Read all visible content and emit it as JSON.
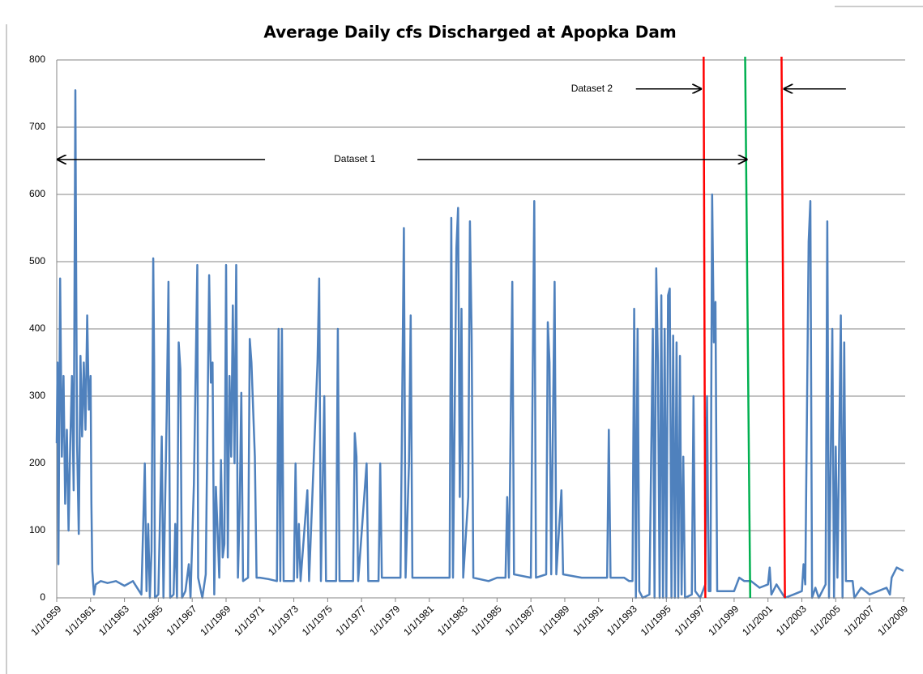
{
  "chart_data": {
    "type": "line",
    "title": "Average Daily cfs Discharged at Apopka Dam",
    "series": [
      {
        "color": "#4f81bd",
        "x": [
          1959,
          1959.05,
          1959.1,
          1959.2,
          1959.3,
          1959.4,
          1959.5,
          1959.6,
          1959.7,
          1959.8,
          1959.9,
          1960,
          1960.1,
          1960.15,
          1960.2,
          1960.3,
          1960.4,
          1960.5,
          1960.6,
          1960.7,
          1960.8,
          1960.9,
          1961,
          1961.05,
          1961.1,
          1961.2,
          1961.3,
          1961.6,
          1962,
          1962.5,
          1963,
          1963.5,
          1964,
          1964.2,
          1964.3,
          1964.4,
          1964.5,
          1964.6,
          1964.7,
          1964.75,
          1964.8,
          1965,
          1965.2,
          1965.3,
          1965.5,
          1965.6,
          1965.7,
          1965.9,
          1966,
          1966.1,
          1966.2,
          1966.3,
          1966.4,
          1966.6,
          1966.8,
          1966.9,
          1967.1,
          1967.3,
          1967.35,
          1967.6,
          1967.8,
          1968,
          1968.1,
          1968.2,
          1968.3,
          1968.4,
          1968.5,
          1968.6,
          1968.7,
          1968.8,
          1968.9,
          1969,
          1969.1,
          1969.2,
          1969.3,
          1969.4,
          1969.5,
          1969.6,
          1969.7,
          1969.8,
          1969.9,
          1970,
          1970.3,
          1970.4,
          1970.5,
          1970.6,
          1970.7,
          1970.8,
          1971,
          1971.5,
          1972,
          1972.1,
          1972.2,
          1972.3,
          1972.4,
          1973,
          1973.1,
          1973.2,
          1973.3,
          1973.4,
          1973.8,
          1973.9,
          1974.4,
          1974.5,
          1974.6,
          1974.8,
          1974.9,
          1975.5,
          1975.6,
          1975.7,
          1976.5,
          1976.6,
          1976.7,
          1976.8,
          1977.3,
          1977.4,
          1978,
          1978.1,
          1978.2,
          1979.3,
          1979.5,
          1979.6,
          1979.8,
          1979.9,
          1980,
          1982.2,
          1982.3,
          1982.4,
          1982.6,
          1982.7,
          1982.8,
          1982.9,
          1983,
          1983.3,
          1983.4,
          1983.5,
          1983.6,
          1984.5,
          1985,
          1985.5,
          1985.6,
          1985.7,
          1985.9,
          1986,
          1987,
          1987.2,
          1987.3,
          1987.9,
          1988,
          1988.1,
          1988.2,
          1988.4,
          1988.5,
          1988.8,
          1988.9,
          1990,
          1991,
          1991.5,
          1991.6,
          1991.7,
          1992.5,
          1992.8,
          1993,
          1993.1,
          1993.2,
          1993.3,
          1993.4,
          1993.6,
          1994,
          1994.2,
          1994.3,
          1994.4,
          1994.5,
          1994.6,
          1994.7,
          1994.8,
          1994.9,
          1995,
          1995.1,
          1995.2,
          1995.3,
          1995.4,
          1995.5,
          1995.6,
          1995.7,
          1995.8,
          1995.9,
          1996,
          1996.1,
          1996.5,
          1996.6,
          1996.7,
          1997,
          1997.3,
          1997.4,
          1997.5,
          1997.6,
          1997.7,
          1997.8,
          1997.9,
          1998,
          1998.5,
          1999,
          1999.3,
          1999.6,
          2000,
          2000.5,
          2001,
          2001.1,
          2001.2,
          2001.5,
          2002,
          2002.5,
          2003,
          2003.1,
          2003.2,
          2003.4,
          2003.5,
          2003.6,
          2003.8,
          2004,
          2004.4,
          2004.5,
          2004.6,
          2004.8,
          2004.9,
          2005,
          2005.1,
          2005.3,
          2005.4,
          2005.5,
          2005.6,
          2006,
          2006.1,
          2006.5,
          2007,
          2007.5,
          2008,
          2008.2,
          2008.3,
          2008.6,
          2009
        ],
        "values": [
          230,
          350,
          50,
          475,
          210,
          330,
          140,
          250,
          100,
          230,
          330,
          160,
          755,
          480,
          230,
          95,
          360,
          240,
          350,
          250,
          420,
          280,
          330,
          140,
          40,
          5,
          20,
          25,
          22,
          25,
          18,
          25,
          5,
          200,
          10,
          110,
          0,
          70,
          505,
          350,
          0,
          5,
          240,
          0,
          280,
          470,
          0,
          5,
          110,
          0,
          380,
          340,
          0,
          10,
          50,
          0,
          170,
          495,
          30,
          0,
          35,
          480,
          320,
          350,
          5,
          165,
          100,
          30,
          205,
          60,
          80,
          495,
          60,
          330,
          210,
          435,
          200,
          495,
          30,
          130,
          305,
          25,
          30,
          385,
          350,
          280,
          210,
          30,
          30,
          28,
          25,
          400,
          25,
          400,
          25,
          25,
          200,
          30,
          110,
          25,
          160,
          25,
          350,
          475,
          25,
          300,
          25,
          25,
          400,
          25,
          25,
          245,
          210,
          25,
          200,
          25,
          25,
          200,
          30,
          30,
          550,
          30,
          200,
          420,
          30,
          30,
          565,
          30,
          520,
          580,
          150,
          430,
          30,
          150,
          560,
          390,
          30,
          25,
          30,
          30,
          150,
          30,
          470,
          35,
          30,
          590,
          30,
          35,
          410,
          350,
          35,
          470,
          35,
          160,
          35,
          30,
          30,
          30,
          250,
          30,
          30,
          25,
          25,
          430,
          0,
          400,
          10,
          0,
          5,
          400,
          0,
          490,
          350,
          0,
          450,
          0,
          400,
          0,
          450,
          460,
          0,
          390,
          0,
          380,
          0,
          360,
          5,
          210,
          0,
          5,
          300,
          10,
          0,
          20,
          300,
          10,
          10,
          600,
          380,
          440,
          10,
          10,
          10,
          30,
          25,
          25,
          15,
          20,
          45,
          5,
          20,
          0,
          5,
          10,
          50,
          20,
          530,
          590,
          0,
          15,
          0,
          20,
          560,
          0,
          400,
          0,
          225,
          30,
          420,
          0,
          380,
          25,
          25,
          0,
          15,
          5,
          10,
          15,
          5,
          30,
          45,
          40
        ]
      }
    ],
    "xlim": [
      1959,
      2009.1
    ],
    "xticks": [
      {
        "value": 1959,
        "label": "1/1/1959"
      },
      {
        "value": 1961,
        "label": "1/1/1961"
      },
      {
        "value": 1963,
        "label": "1/1/1963"
      },
      {
        "value": 1965,
        "label": "1/1/1965"
      },
      {
        "value": 1967,
        "label": "1/1/1967"
      },
      {
        "value": 1969,
        "label": "1/1/1969"
      },
      {
        "value": 1971,
        "label": "1/1/1971"
      },
      {
        "value": 1973,
        "label": "1/1/1973"
      },
      {
        "value": 1975,
        "label": "1/1/1975"
      },
      {
        "value": 1977,
        "label": "1/1/1977"
      },
      {
        "value": 1979,
        "label": "1/1/1979"
      },
      {
        "value": 1981,
        "label": "1/1/1981"
      },
      {
        "value": 1983,
        "label": "1/1/1983"
      },
      {
        "value": 1985,
        "label": "1/1/1985"
      },
      {
        "value": 1987,
        "label": "1/1/1987"
      },
      {
        "value": 1989,
        "label": "1/1/1989"
      },
      {
        "value": 1991,
        "label": "1/1/1991"
      },
      {
        "value": 1993,
        "label": "1/1/1993"
      },
      {
        "value": 1995,
        "label": "1/1/1995"
      },
      {
        "value": 1997,
        "label": "1/1/1997"
      },
      {
        "value": 1999,
        "label": "1/1/1999"
      },
      {
        "value": 2001,
        "label": "1/1/2001"
      },
      {
        "value": 2003,
        "label": "1/1/2003"
      },
      {
        "value": 2005,
        "label": "1/1/2005"
      },
      {
        "value": 2007,
        "label": "1/1/2007"
      },
      {
        "value": 2009,
        "label": "1/1/2009"
      }
    ],
    "ylim": [
      0,
      800
    ],
    "yticks": [
      0,
      100,
      200,
      300,
      400,
      500,
      600,
      700,
      800
    ],
    "grid": true,
    "vlines": [
      {
        "x": [
          1997.2,
          1997.3
        ],
        "color": "#ff0000"
      },
      {
        "x": [
          1999.65,
          1999.95
        ],
        "color": "#00b050"
      },
      {
        "x": [
          2001.8,
          2002.0
        ],
        "color": "#ff0000"
      }
    ],
    "annotations": [
      {
        "text": "Dataset 1",
        "x": 1976.6,
        "y": 652
      },
      {
        "text": "Dataset 2",
        "x": 1990.6,
        "y": 757
      }
    ],
    "arrows": [
      {
        "from": [
          1971.3,
          652
        ],
        "to": [
          1959,
          652
        ]
      },
      {
        "from": [
          1980.3,
          652
        ],
        "to": [
          1999.8,
          652
        ]
      },
      {
        "from": [
          1993.2,
          757
        ],
        "to": [
          1997.1,
          757
        ]
      },
      {
        "from": [
          2005.6,
          757
        ],
        "to": [
          2001.9,
          757
        ]
      }
    ]
  }
}
